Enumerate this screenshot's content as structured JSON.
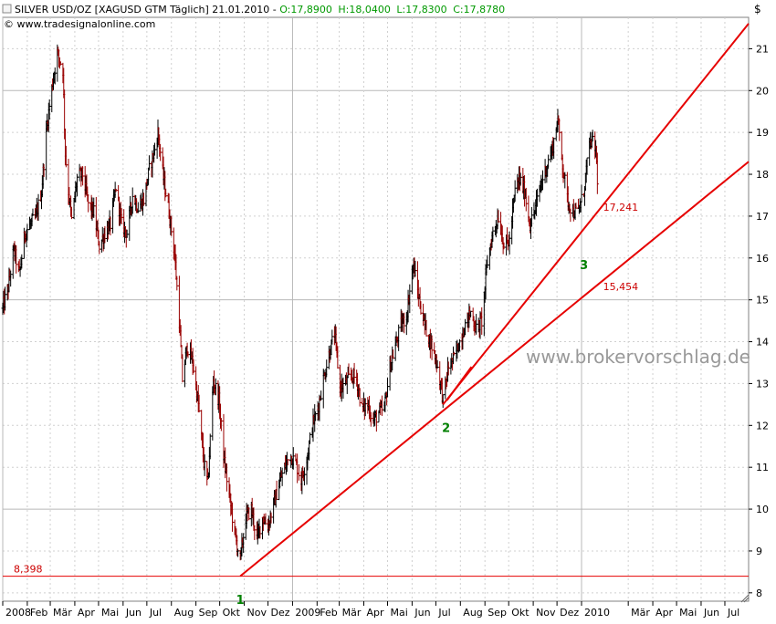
{
  "header": {
    "instrument": "SILVER USD/OZ [XAGUSD GTM  Täglich] 21.01.2010 - ",
    "open": "O:17,8900",
    "high": "H:18,0400",
    "low": "L:17,8300",
    "close": "C:17,8780",
    "copyright": "© www.tradesignalonline.com"
  },
  "watermark": "www.brokervorschlag.de",
  "currency_symbol": "$",
  "colors": {
    "ohlc_up": "#000000",
    "ohlc_down": "#990000",
    "trendline": "#e60000",
    "support_line": "#e60000",
    "wave_label": "#008000",
    "header_ohlc": "#009900",
    "grid": "#c8c8c8"
  },
  "chart_data": {
    "type": "line",
    "title": "SILVER USD/OZ [XAGUSD GTM  Täglich]",
    "ylim": [
      7.8,
      21.75
    ],
    "yticks": [
      "8",
      "9",
      "10",
      "11",
      "12",
      "13",
      "14",
      "15",
      "16",
      "17",
      "18",
      "19",
      "20",
      "21"
    ],
    "x_range": [
      "2008-01-01",
      "2010-07-31"
    ],
    "grid": true,
    "month_labels": [
      {
        "label": "2008",
        "date": "2008-01-01"
      },
      {
        "label": "Feb",
        "date": "2008-02-01"
      },
      {
        "label": "Mär",
        "date": "2008-03-01"
      },
      {
        "label": "Apr",
        "date": "2008-04-01"
      },
      {
        "label": "Mai",
        "date": "2008-05-01"
      },
      {
        "label": "Jun",
        "date": "2008-06-01"
      },
      {
        "label": "Jul",
        "date": "2008-07-01"
      },
      {
        "label": "Aug",
        "date": "2008-08-01"
      },
      {
        "label": "Sep",
        "date": "2008-09-01"
      },
      {
        "label": "Okt",
        "date": "2008-10-01"
      },
      {
        "label": "Nov",
        "date": "2008-11-01"
      },
      {
        "label": "Dez",
        "date": "2008-12-01"
      },
      {
        "label": "2009",
        "date": "2009-01-01"
      },
      {
        "label": "Feb",
        "date": "2009-02-01"
      },
      {
        "label": "Mär",
        "date": "2009-03-01"
      },
      {
        "label": "Apr",
        "date": "2009-04-01"
      },
      {
        "label": "Mai",
        "date": "2009-05-01"
      },
      {
        "label": "Jun",
        "date": "2009-06-01"
      },
      {
        "label": "Jul",
        "date": "2009-07-01"
      },
      {
        "label": "Aug",
        "date": "2009-08-01"
      },
      {
        "label": "Sep",
        "date": "2009-09-01"
      },
      {
        "label": "Okt",
        "date": "2009-10-01"
      },
      {
        "label": "Nov",
        "date": "2009-11-01"
      },
      {
        "label": "Dez",
        "date": "2009-12-01"
      },
      {
        "label": "2010",
        "date": "2010-01-01"
      },
      {
        "label": "Mär",
        "date": "2010-03-01"
      },
      {
        "label": "Apr",
        "date": "2010-04-01"
      },
      {
        "label": "Mai",
        "date": "2010-05-01"
      },
      {
        "label": "Jun",
        "date": "2010-06-01"
      },
      {
        "label": "Jul",
        "date": "2010-07-01"
      }
    ],
    "series": [
      {
        "type": "ohlc-daily",
        "values": [
          [
            "2008-01-01",
            14.8
          ],
          [
            "2008-01-08",
            15.3
          ],
          [
            "2008-01-15",
            16.2
          ],
          [
            "2008-01-22",
            15.6
          ],
          [
            "2008-01-29",
            16.6
          ],
          [
            "2008-02-05",
            16.8
          ],
          [
            "2008-02-12",
            17.0
          ],
          [
            "2008-02-19",
            17.6
          ],
          [
            "2008-02-26",
            19.2
          ],
          [
            "2008-03-04",
            20.2
          ],
          [
            "2008-03-10",
            20.9
          ],
          [
            "2008-03-17",
            20.5
          ],
          [
            "2008-03-20",
            18.5
          ],
          [
            "2008-03-24",
            17.6
          ],
          [
            "2008-03-28",
            16.9
          ],
          [
            "2008-04-04",
            17.9
          ],
          [
            "2008-04-11",
            18.0
          ],
          [
            "2008-04-18",
            17.3
          ],
          [
            "2008-04-25",
            17.1
          ],
          [
            "2008-05-02",
            16.3
          ],
          [
            "2008-05-09",
            16.6
          ],
          [
            "2008-05-16",
            16.8
          ],
          [
            "2008-05-23",
            17.7
          ],
          [
            "2008-05-30",
            16.8
          ],
          [
            "2008-06-06",
            16.6
          ],
          [
            "2008-06-13",
            17.5
          ],
          [
            "2008-06-20",
            17.2
          ],
          [
            "2008-06-27",
            17.4
          ],
          [
            "2008-07-04",
            18.1
          ],
          [
            "2008-07-11",
            18.6
          ],
          [
            "2008-07-15",
            19.0
          ],
          [
            "2008-07-22",
            17.9
          ],
          [
            "2008-07-29",
            17.1
          ],
          [
            "2008-08-05",
            16.1
          ],
          [
            "2008-08-11",
            14.5
          ],
          [
            "2008-08-15",
            13.1
          ],
          [
            "2008-08-21",
            13.9
          ],
          [
            "2008-08-28",
            13.5
          ],
          [
            "2008-09-04",
            12.5
          ],
          [
            "2008-09-11",
            11.1
          ],
          [
            "2008-09-16",
            10.6
          ],
          [
            "2008-09-23",
            13.1
          ],
          [
            "2008-09-30",
            12.6
          ],
          [
            "2008-10-07",
            11.1
          ],
          [
            "2008-10-14",
            10.2
          ],
          [
            "2008-10-21",
            9.3
          ],
          [
            "2008-10-27",
            8.8
          ],
          [
            "2008-11-03",
            9.8
          ],
          [
            "2008-11-10",
            10.0
          ],
          [
            "2008-11-17",
            9.3
          ],
          [
            "2008-11-24",
            9.8
          ],
          [
            "2008-12-01",
            9.6
          ],
          [
            "2008-12-08",
            10.1
          ],
          [
            "2008-12-15",
            10.6
          ],
          [
            "2008-12-22",
            11.0
          ],
          [
            "2008-12-29",
            11.3
          ],
          [
            "2009-01-05",
            11.1
          ],
          [
            "2009-01-12",
            10.7
          ],
          [
            "2009-01-19",
            11.2
          ],
          [
            "2009-01-26",
            12.0
          ],
          [
            "2009-02-02",
            12.4
          ],
          [
            "2009-02-09",
            13.1
          ],
          [
            "2009-02-16",
            13.7
          ],
          [
            "2009-02-23",
            14.2
          ],
          [
            "2009-03-02",
            12.9
          ],
          [
            "2009-03-09",
            13.0
          ],
          [
            "2009-03-16",
            13.2
          ],
          [
            "2009-03-23",
            13.1
          ],
          [
            "2009-03-30",
            12.4
          ],
          [
            "2009-04-06",
            12.5
          ],
          [
            "2009-04-13",
            12.1
          ],
          [
            "2009-04-20",
            12.3
          ],
          [
            "2009-04-27",
            12.4
          ],
          [
            "2009-05-04",
            13.4
          ],
          [
            "2009-05-11",
            13.9
          ],
          [
            "2009-05-18",
            14.4
          ],
          [
            "2009-05-25",
            14.6
          ],
          [
            "2009-06-01",
            15.7
          ],
          [
            "2009-06-03",
            15.8
          ],
          [
            "2009-06-10",
            15.0
          ],
          [
            "2009-06-17",
            14.4
          ],
          [
            "2009-06-24",
            14.0
          ],
          [
            "2009-07-01",
            13.6
          ],
          [
            "2009-07-08",
            12.9
          ],
          [
            "2009-07-10",
            12.6
          ],
          [
            "2009-07-17",
            13.4
          ],
          [
            "2009-07-24",
            13.6
          ],
          [
            "2009-07-31",
            14.0
          ],
          [
            "2009-08-07",
            14.4
          ],
          [
            "2009-08-14",
            14.7
          ],
          [
            "2009-08-21",
            14.3
          ],
          [
            "2009-08-28",
            14.5
          ],
          [
            "2009-09-04",
            15.9
          ],
          [
            "2009-09-11",
            16.6
          ],
          [
            "2009-09-18",
            17.0
          ],
          [
            "2009-09-25",
            16.3
          ],
          [
            "2009-10-02",
            16.4
          ],
          [
            "2009-10-09",
            17.6
          ],
          [
            "2009-10-14",
            17.9
          ],
          [
            "2009-10-21",
            17.6
          ],
          [
            "2009-10-28",
            16.8
          ],
          [
            "2009-11-04",
            17.2
          ],
          [
            "2009-11-11",
            17.8
          ],
          [
            "2009-11-18",
            18.2
          ],
          [
            "2009-11-25",
            18.6
          ],
          [
            "2009-12-02",
            19.3
          ],
          [
            "2009-12-07",
            18.4
          ],
          [
            "2009-12-14",
            17.4
          ],
          [
            "2009-12-21",
            17.1
          ],
          [
            "2009-12-28",
            17.1
          ],
          [
            "2010-01-04",
            17.6
          ],
          [
            "2010-01-08",
            18.3
          ],
          [
            "2010-01-13",
            18.8
          ],
          [
            "2010-01-19",
            18.6
          ],
          [
            "2010-01-21",
            17.9
          ]
        ]
      }
    ],
    "horizontal_line": {
      "value": 8.398,
      "label": "8,398"
    },
    "trendlines": [
      {
        "label": "15,454",
        "from": [
          "2008-10-27",
          8.4
        ],
        "to": [
          "2010-07-31",
          18.3
        ]
      },
      {
        "label": "17,241",
        "from": [
          "2009-07-10",
          12.5
        ],
        "to": [
          "2010-07-31",
          21.6
        ]
      },
      {
        "label": "",
        "from": [
          "2009-07-15",
          12.6
        ],
        "to": [
          "2009-08-15",
          13.4
        ]
      }
    ],
    "wave_labels": [
      {
        "label": "1",
        "date": "2008-10-27",
        "value": 8.0
      },
      {
        "label": "2",
        "date": "2009-07-14",
        "value": 12.1
      },
      {
        "label": "3",
        "date": "2010-01-04",
        "value": 16.0
      }
    ]
  }
}
